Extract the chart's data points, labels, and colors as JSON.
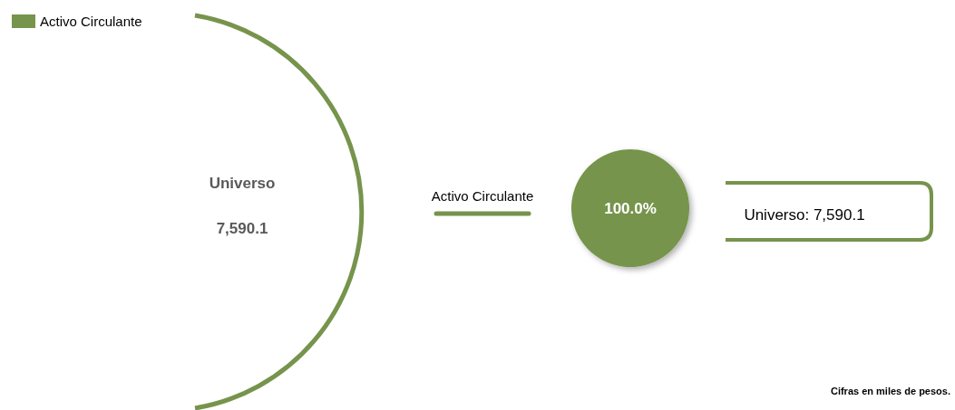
{
  "chart_data": {
    "type": "pie",
    "categories": [
      "Activo Circulante"
    ],
    "values": [
      100
    ],
    "colors": [
      "#76944c"
    ],
    "value_labels": [
      "100.0%"
    ],
    "legend": "top left",
    "annotations": [
      "Universo",
      "7,590.1",
      "Universo: 7,590.1",
      "Cifras en miles de pesos."
    ]
  }
}
